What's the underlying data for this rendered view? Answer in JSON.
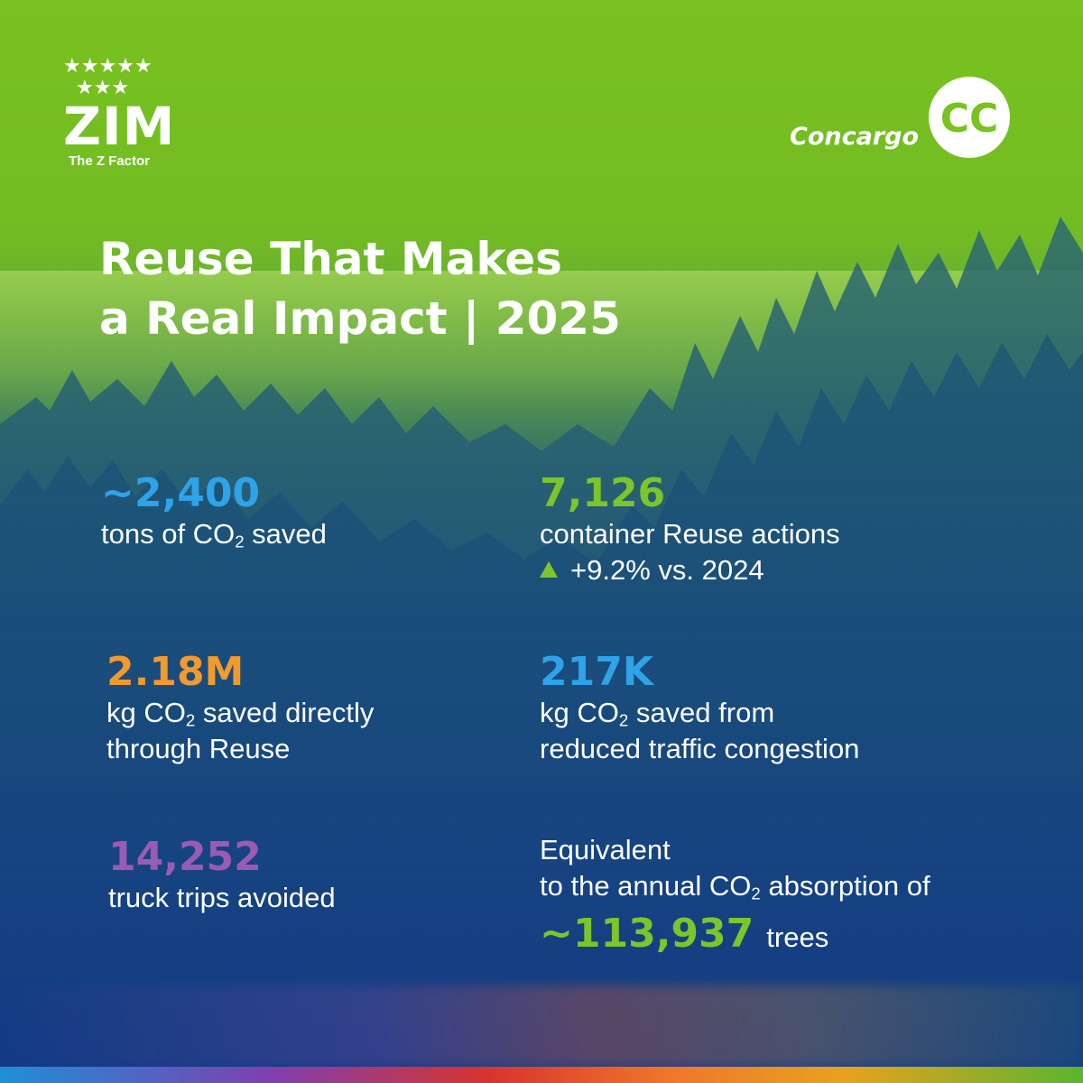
{
  "brand": {
    "zim_name": "ZIM",
    "zim_tagline": "The Z Factor",
    "zim_stars": "★★★★★★★★",
    "concargo_name": "Concargo",
    "concargo_mark": "CC"
  },
  "title": {
    "line1": "Reuse That Makes",
    "line2": "a Real Impact | 2025"
  },
  "stats": {
    "co2_tons": {
      "value": "~2,400",
      "desc_before": "tons of CO",
      "desc_sub": "2",
      "desc_after": " saved"
    },
    "reuse_actions": {
      "value": "7,126",
      "desc": "container Reuse actions",
      "change": "+9.2% vs. 2024"
    },
    "kg_direct": {
      "value": "2.18M",
      "desc_line1_before": "kg CO",
      "desc_sub": "2",
      "desc_line1_after": " saved directly",
      "desc_line2": "through Reuse"
    },
    "kg_traffic": {
      "value": "217K",
      "desc_line1_before": "kg CO",
      "desc_sub": "2",
      "desc_line1_after": " saved from",
      "desc_line2": "reduced traffic congestion"
    },
    "truck_trips": {
      "value": "14,252",
      "desc": "truck trips avoided"
    },
    "trees": {
      "line1": "Equivalent",
      "line2_before": "to the annual CO",
      "line2_sub": "2",
      "line2_after": " absorption of",
      "value": "~113,937",
      "unit": "trees"
    }
  },
  "colors": {
    "blue": "#2ea3e8",
    "green": "#7cc52a",
    "orange": "#f29a2e",
    "purple": "#9a5bb3"
  }
}
